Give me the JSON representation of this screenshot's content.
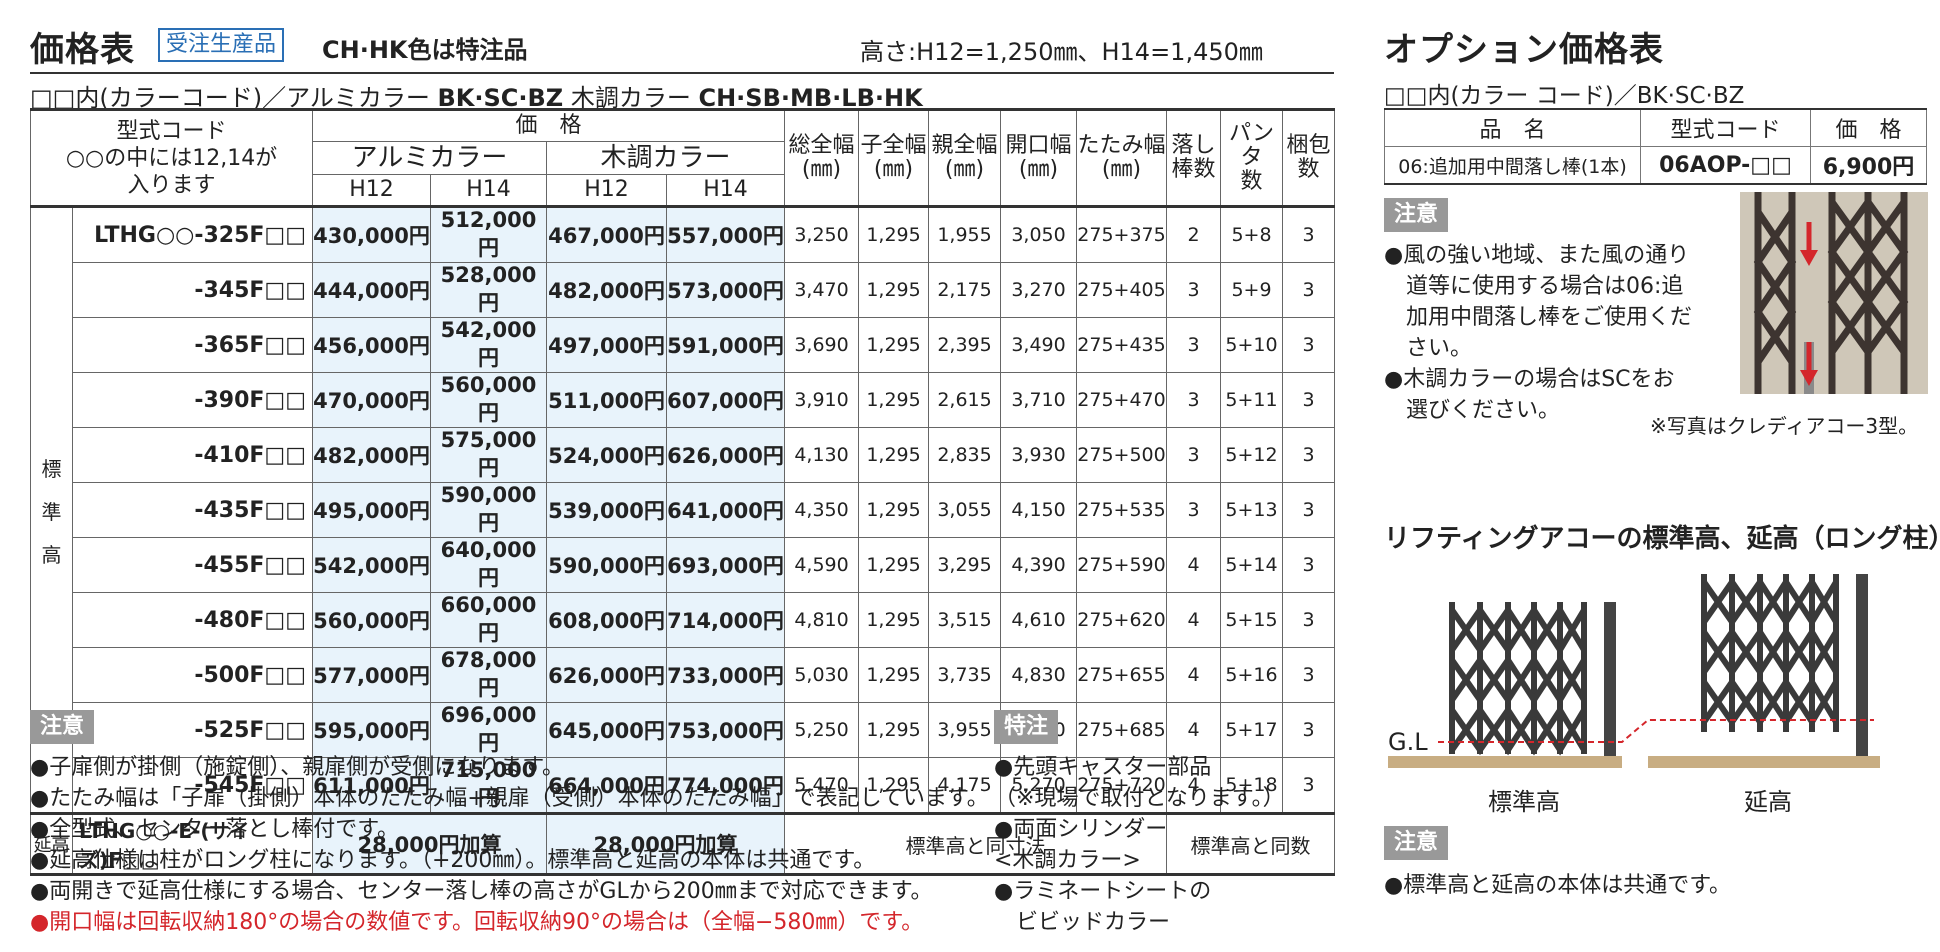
{
  "header": {
    "title": "価格表",
    "tag": "受注生産品",
    "special": "CH·HK色は特注品",
    "height_note": "高さ:H12=1,250㎜、H14=1,450㎜",
    "color_line": {
      "prefix": "□□内(カラーコード)／アルミカラー",
      "alu": "BK·SC·BZ",
      "wood_label": "木調カラー",
      "wood": "CH·SB·MB·LB·HK"
    }
  },
  "table": {
    "headers": {
      "model_l1": "型式コード",
      "model_l2": "○○の中には12,14が",
      "model_l3": "入ります",
      "price": "価　格",
      "alu": "アルミカラー",
      "wood": "木調カラー",
      "h12": "H12",
      "h14": "H14",
      "total_w": "総全幅",
      "child_w": "子全幅",
      "parent_w": "親全幅",
      "open_w": "開口幅",
      "fold_w": "たたみ幅",
      "unit": "(㎜)",
      "drop_l1": "落し",
      "drop_l2": "棒数",
      "panta_l1": "パンタ",
      "panta_l2": "数",
      "pack_l1": "梱包",
      "pack_l2": "数"
    },
    "side_label": [
      "標",
      "準",
      "高"
    ],
    "rows": [
      {
        "code": "LTHG○○-325F□□",
        "a12": "430,000円",
        "a14": "512,000円",
        "w12": "467,000円",
        "w14": "557,000円",
        "total": "3,250",
        "child": "1,295",
        "parent": "1,955",
        "open": "3,050",
        "fold": "275+375",
        "drop": "2",
        "panta": "5+8",
        "pack": "3"
      },
      {
        "code": "-345F□□",
        "a12": "444,000円",
        "a14": "528,000円",
        "w12": "482,000円",
        "w14": "573,000円",
        "total": "3,470",
        "child": "1,295",
        "parent": "2,175",
        "open": "3,270",
        "fold": "275+405",
        "drop": "3",
        "panta": "5+9",
        "pack": "3"
      },
      {
        "code": "-365F□□",
        "a12": "456,000円",
        "a14": "542,000円",
        "w12": "497,000円",
        "w14": "591,000円",
        "total": "3,690",
        "child": "1,295",
        "parent": "2,395",
        "open": "3,490",
        "fold": "275+435",
        "drop": "3",
        "panta": "5+10",
        "pack": "3"
      },
      {
        "code": "-390F□□",
        "a12": "470,000円",
        "a14": "560,000円",
        "w12": "511,000円",
        "w14": "607,000円",
        "total": "3,910",
        "child": "1,295",
        "parent": "2,615",
        "open": "3,710",
        "fold": "275+470",
        "drop": "3",
        "panta": "5+11",
        "pack": "3"
      },
      {
        "code": "-410F□□",
        "a12": "482,000円",
        "a14": "575,000円",
        "w12": "524,000円",
        "w14": "626,000円",
        "total": "4,130",
        "child": "1,295",
        "parent": "2,835",
        "open": "3,930",
        "fold": "275+500",
        "drop": "3",
        "panta": "5+12",
        "pack": "3"
      },
      {
        "code": "-435F□□",
        "a12": "495,000円",
        "a14": "590,000円",
        "w12": "539,000円",
        "w14": "641,000円",
        "total": "4,350",
        "child": "1,295",
        "parent": "3,055",
        "open": "4,150",
        "fold": "275+535",
        "drop": "3",
        "panta": "5+13",
        "pack": "3"
      },
      {
        "code": "-455F□□",
        "a12": "542,000円",
        "a14": "640,000円",
        "w12": "590,000円",
        "w14": "693,000円",
        "total": "4,590",
        "child": "1,295",
        "parent": "3,295",
        "open": "4,390",
        "fold": "275+590",
        "drop": "4",
        "panta": "5+14",
        "pack": "3"
      },
      {
        "code": "-480F□□",
        "a12": "560,000円",
        "a14": "660,000円",
        "w12": "608,000円",
        "w14": "714,000円",
        "total": "4,810",
        "child": "1,295",
        "parent": "3,515",
        "open": "4,610",
        "fold": "275+620",
        "drop": "4",
        "panta": "5+15",
        "pack": "3"
      },
      {
        "code": "-500F□□",
        "a12": "577,000円",
        "a14": "678,000円",
        "w12": "626,000円",
        "w14": "733,000円",
        "total": "5,030",
        "child": "1,295",
        "parent": "3,735",
        "open": "4,830",
        "fold": "275+655",
        "drop": "4",
        "panta": "5+16",
        "pack": "3"
      },
      {
        "code": "-525F□□",
        "a12": "595,000円",
        "a14": "696,000円",
        "w12": "645,000円",
        "w14": "753,000円",
        "total": "5,250",
        "child": "1,295",
        "parent": "3,955",
        "open": "5,050",
        "fold": "275+685",
        "drop": "4",
        "panta": "5+17",
        "pack": "3"
      },
      {
        "code": "-545F□□",
        "a12": "611,000円",
        "a14": "715,000円",
        "w12": "664,000円",
        "w14": "774,000円",
        "total": "5,470",
        "child": "1,295",
        "parent": "4,175",
        "open": "5,270",
        "fold": "275+720",
        "drop": "4",
        "panta": "5+18",
        "pack": "3"
      }
    ],
    "ext_row": {
      "label": "延高",
      "code": "LTHG○○-E-(サイズ)F□□",
      "alu": "28,000円加算",
      "wood": "28,000円加算",
      "dims": "標準高と同寸法",
      "counts": "標準高と同数"
    }
  },
  "notes": {
    "label": "注意",
    "lines": [
      "●子扉側が掛側（施錠側）、親扉側が受側になります。",
      "●たたみ幅は「子扉（掛側）本体のたたみ幅+親扉（受側）本体のたたみ幅」で表記しています。",
      "●全型式、センター落とし棒付です。",
      "●延高仕様は柱がロング柱になります。（+200㎜）。標準高と延高の本体は共通です。",
      "●両開きで延高仕様にする場合、センター落し棒の高さがGLから200㎜まで対応できます。"
    ],
    "red_line": "●開口幅は回転収納180°の場合の数値です。回転収納90°の場合は（全幅−580㎜）です。"
  },
  "special_notes": {
    "label": "特注",
    "lines": [
      "●先頭キャスター部品",
      "（※現場で取付となります。）",
      "●両面シリンダー",
      "<木調カラー>",
      "●ラミネートシートの",
      "　ビビッドカラー"
    ]
  },
  "option": {
    "title": "オプション価格表",
    "color_line": "□□内(カラー コード)／BK·SC·BZ",
    "headers": {
      "name": "品　名",
      "code": "型式コード",
      "price": "価　格"
    },
    "row": {
      "name": "06:追加用中間落し棒(1本)",
      "code": "06AOP-□□",
      "price": "6,900円"
    },
    "note_label": "注意",
    "note_lines": [
      "●風の強い地域、また風の通り",
      "　道等に使用する場合は06:追",
      "　加用中間落し棒をご使用くだ",
      "　さい。",
      "●木調カラーの場合はSCをお",
      "　選びください。"
    ],
    "photo_caption": "※写真はクレディアコー3型。"
  },
  "lifting": {
    "title": "リフティングアコーの標準高、延高（ロング柱）",
    "gl": "G.L",
    "std_label": "標準高",
    "ext_label": "延高",
    "note_label": "注意",
    "note": "●標準高と延高の本体は共通です。"
  }
}
